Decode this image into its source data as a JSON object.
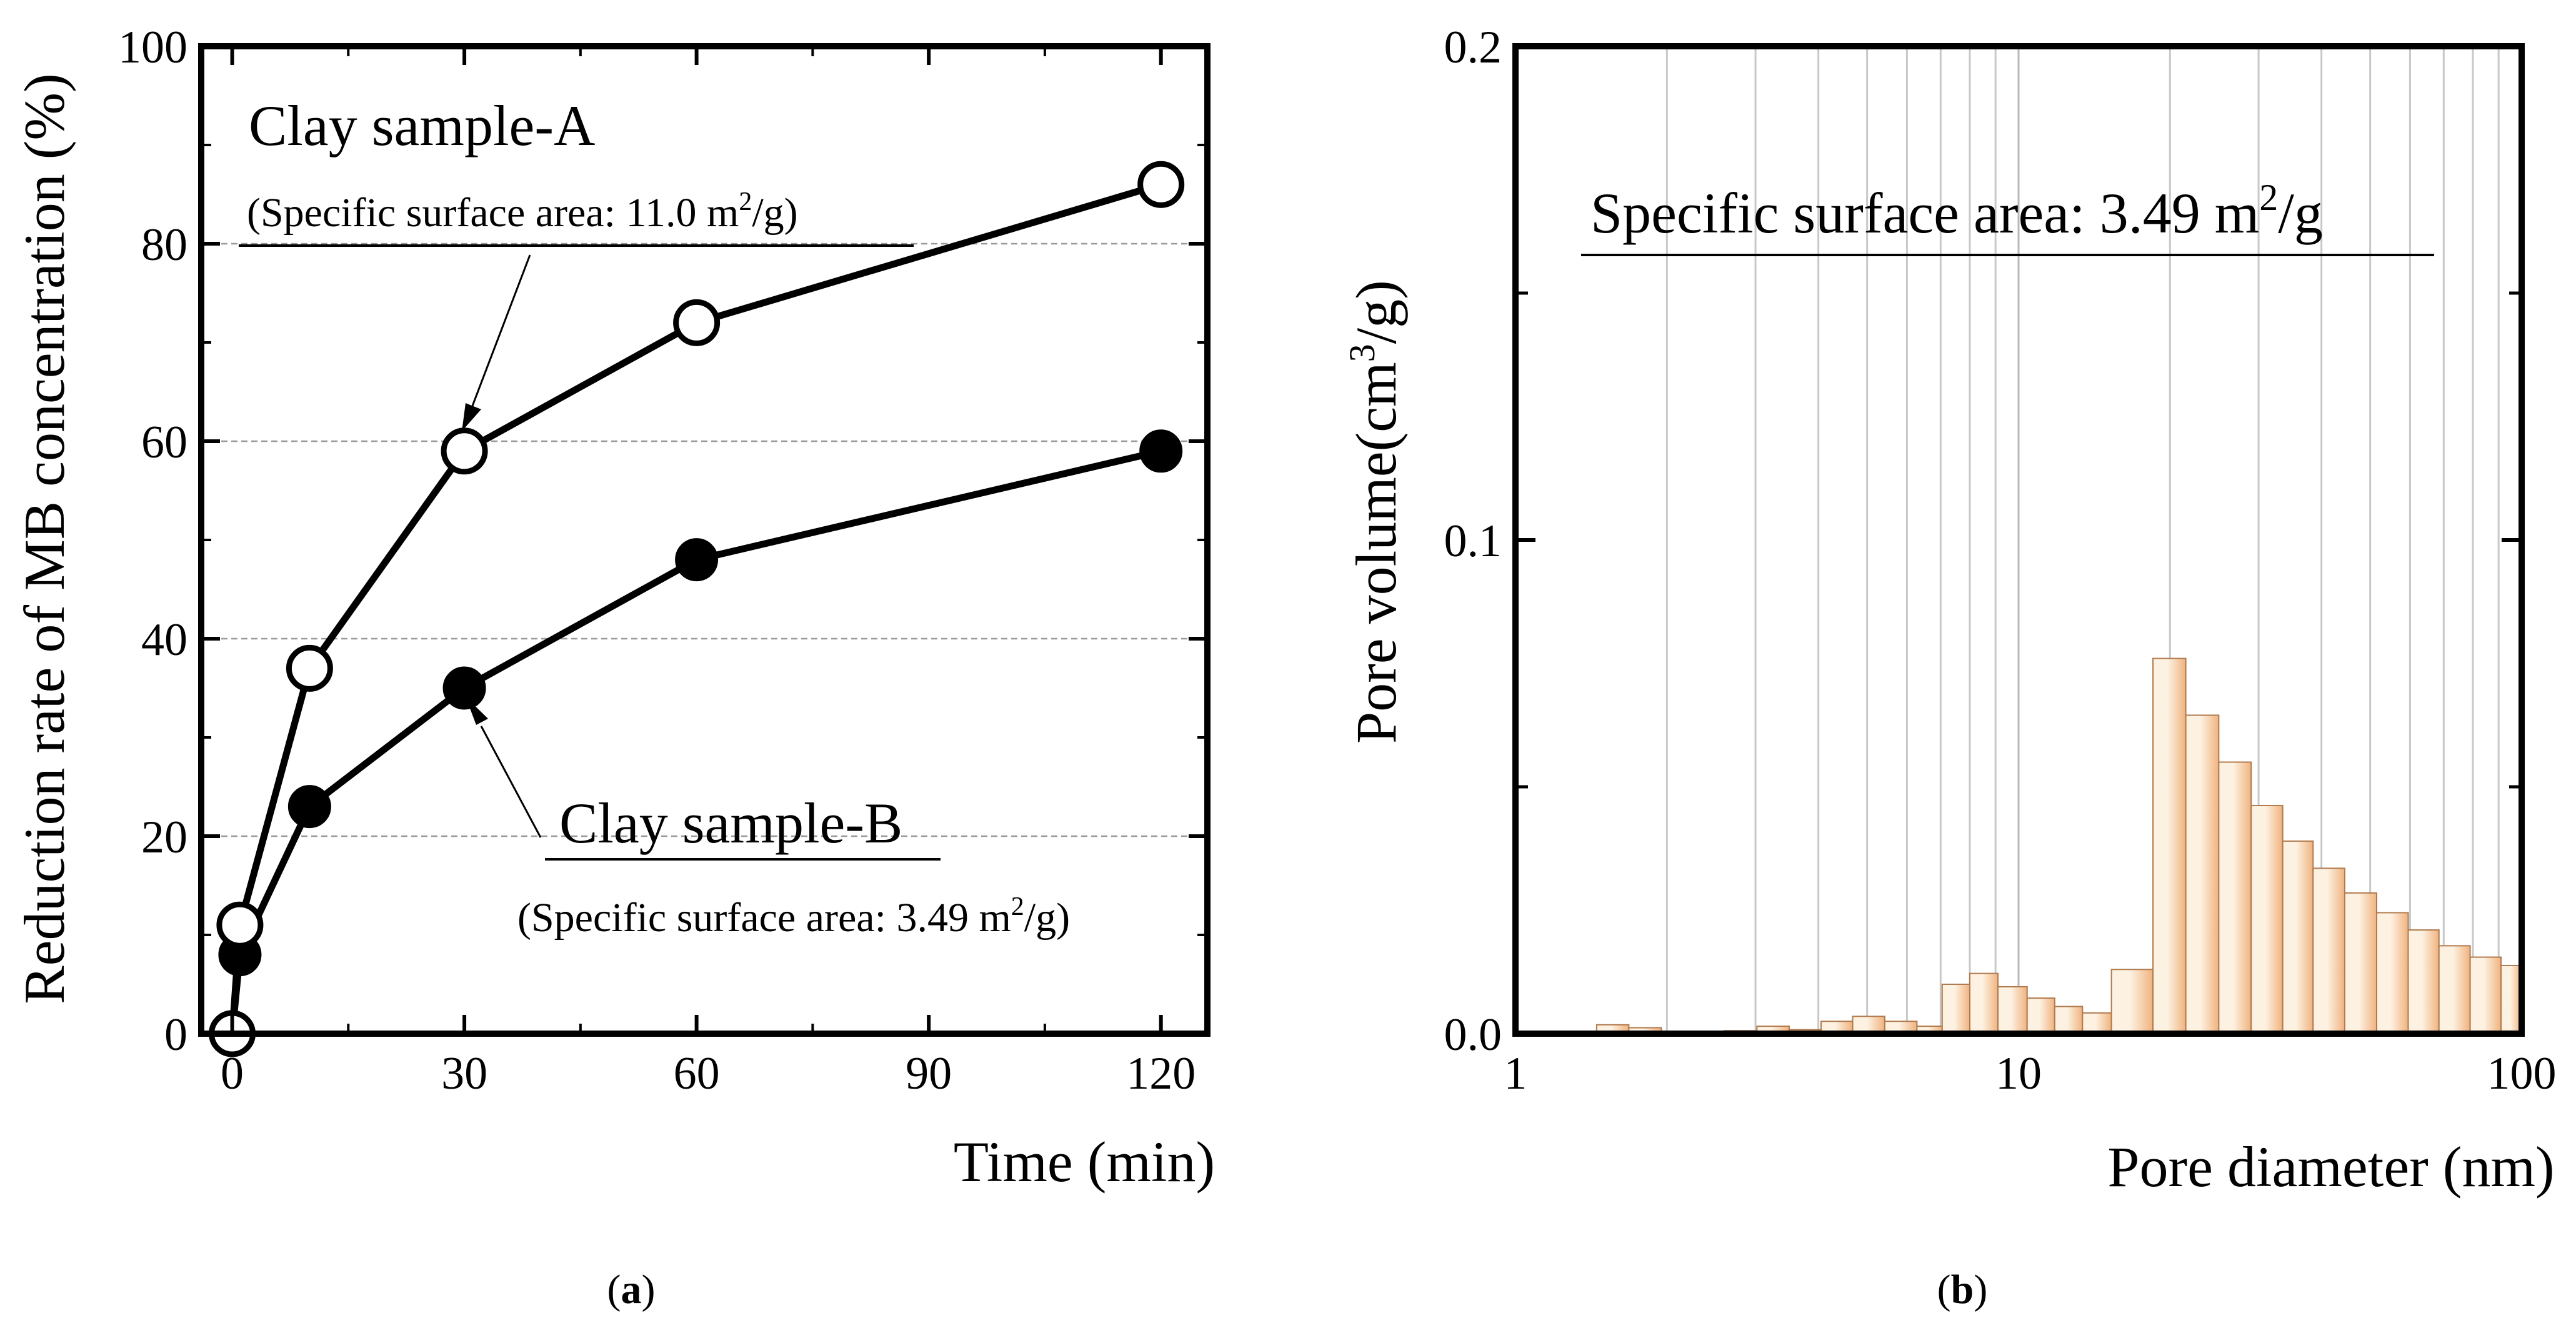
{
  "colors": {
    "line": "#000000",
    "grid": "#9a9a9a",
    "bar_light": "#fdf1e1",
    "bar_dark": "#f0b37f",
    "bar_stroke": "#b07a4e"
  },
  "panels": {
    "a_label_open": "(",
    "a_label_letter": "a",
    "a_label_close": ")",
    "b_label_open": "(",
    "b_label_letter": "b",
    "b_label_close": ")"
  },
  "annotations": {
    "sample_a_title": "Clay sample-A",
    "sample_a_area_pre": "(Specific surface area: 11.0 m",
    "sample_a_area_sup": "2",
    "sample_a_area_post": "/g)",
    "sample_b_title": "Clay sample-B",
    "sample_b_area_pre": "(Specific surface area: 3.49 m",
    "sample_b_area_sup": "2",
    "sample_b_area_post": "/g)",
    "pore_area_pre": "Specific surface area: 3.49 m",
    "pore_area_sup": "2",
    "pore_area_post": "/g"
  },
  "chart_data": [
    {
      "type": "line",
      "title": "",
      "xlabel": "Time (min)",
      "ylabel": "Reduction rate of MB concentration (%)",
      "xlim": [
        -4,
        126
      ],
      "ylim": [
        0,
        100
      ],
      "xticks": [
        0,
        30,
        60,
        90,
        120
      ],
      "yticks": [
        0,
        20,
        40,
        60,
        80,
        100
      ],
      "ygrid": [
        20,
        40,
        60,
        80
      ],
      "series": [
        {
          "name": "Clay sample-A",
          "marker": "open-circle",
          "x": [
            0,
            1,
            10,
            30,
            60,
            120
          ],
          "y": [
            0,
            11,
            37,
            59,
            72,
            86
          ]
        },
        {
          "name": "Clay sample-B",
          "marker": "filled-circle",
          "x": [
            0,
            1,
            10,
            30,
            60,
            120
          ],
          "y": [
            0,
            8,
            23,
            35,
            48,
            59
          ]
        }
      ]
    },
    {
      "type": "bar",
      "title": "",
      "xlabel": "Pore diameter (nm)",
      "ylabel_main": "Pore volume",
      "ylabel_unit_pre": "(cm",
      "ylabel_unit_sup": "3",
      "ylabel_unit_post": "/g)",
      "xscale": "log",
      "xlim": [
        1,
        100
      ],
      "ylim": [
        0,
        0.2
      ],
      "xticks": [
        1,
        10,
        100
      ],
      "xtick_labels": [
        "1",
        "10",
        "100"
      ],
      "yticks": [
        0.0,
        0.1,
        0.2
      ],
      "ytick_labels": [
        "0.0",
        "0.1",
        "0.2"
      ],
      "bins": [
        {
          "from": 1.07,
          "to": 1.24,
          "value": 0.0005
        },
        {
          "from": 1.24,
          "to": 1.45,
          "value": 0.0003
        },
        {
          "from": 1.45,
          "to": 1.68,
          "value": 0.0018
        },
        {
          "from": 1.68,
          "to": 1.95,
          "value": 0.0012
        },
        {
          "from": 1.95,
          "to": 2.25,
          "value": 0.0005
        },
        {
          "from": 2.25,
          "to": 2.6,
          "value": 0.0004
        },
        {
          "from": 2.6,
          "to": 3.02,
          "value": 0.0006
        },
        {
          "from": 3.02,
          "to": 3.5,
          "value": 0.0015
        },
        {
          "from": 3.5,
          "to": 4.05,
          "value": 0.0008
        },
        {
          "from": 4.05,
          "to": 4.68,
          "value": 0.0025
        },
        {
          "from": 4.68,
          "to": 5.42,
          "value": 0.0035
        },
        {
          "from": 5.42,
          "to": 6.28,
          "value": 0.0025
        },
        {
          "from": 6.28,
          "to": 7.05,
          "value": 0.0015
        },
        {
          "from": 7.05,
          "to": 8.0,
          "value": 0.01
        },
        {
          "from": 8.0,
          "to": 9.1,
          "value": 0.0122
        },
        {
          "from": 9.1,
          "to": 10.4,
          "value": 0.0095
        },
        {
          "from": 10.4,
          "to": 11.8,
          "value": 0.0072
        },
        {
          "from": 11.8,
          "to": 13.4,
          "value": 0.0055
        },
        {
          "from": 13.4,
          "to": 15.3,
          "value": 0.0042
        },
        {
          "from": 15.3,
          "to": 18.5,
          "value": 0.013
        },
        {
          "from": 18.5,
          "to": 21.5,
          "value": 0.076
        },
        {
          "from": 21.5,
          "to": 25.0,
          "value": 0.0645
        },
        {
          "from": 25.0,
          "to": 29.0,
          "value": 0.055
        },
        {
          "from": 29.0,
          "to": 33.5,
          "value": 0.0462
        },
        {
          "from": 33.5,
          "to": 38.5,
          "value": 0.039
        },
        {
          "from": 38.5,
          "to": 44.5,
          "value": 0.0335
        },
        {
          "from": 44.5,
          "to": 51.5,
          "value": 0.0285
        },
        {
          "from": 51.5,
          "to": 59.5,
          "value": 0.0245
        },
        {
          "from": 59.5,
          "to": 68.5,
          "value": 0.021
        },
        {
          "from": 68.5,
          "to": 79.0,
          "value": 0.0178
        },
        {
          "from": 79.0,
          "to": 91.0,
          "value": 0.0155
        },
        {
          "from": 91.0,
          "to": 100.0,
          "value": 0.0138
        }
      ]
    }
  ]
}
